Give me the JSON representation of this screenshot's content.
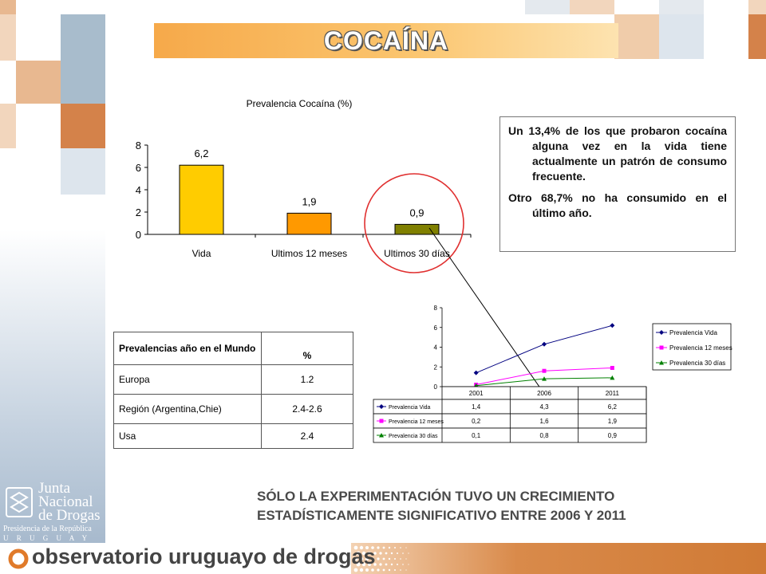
{
  "header": {
    "title": "COCAÍNA"
  },
  "bar_chart_title": "Prevalencia Cocaína (%)",
  "note": {
    "paragraph_1": "Un 13,4% de los que probaron cocaína alguna vez en la vida tiene actualmente un patrón de consumo frecuente.",
    "paragraph_2": "Otro 68,7% no ha consumido en el último año."
  },
  "world_table": {
    "header_label": "Prevalencias año en el Mundo",
    "header_value": "%",
    "rows": [
      {
        "label": "Europa",
        "value": "1.2"
      },
      {
        "label": "Región (Argentina,Chie)",
        "value": "2.4-2.6"
      },
      {
        "label": "Usa",
        "value": "2.4"
      }
    ]
  },
  "footer": {
    "message_line1": "SÓLO LA EXPERIMENTACIÓN TUVO UN CRECIMIENTO",
    "message_line2": "ESTADÍSTICAMENTE SIGNIFICATIVO ENTRE 2006 Y 2011",
    "observatorio": "observatorio uruguayo de drogas",
    "logo_line1": "Junta",
    "logo_line2": "Nacional",
    "logo_line3": "de Drogas",
    "logo_line4": "Presidencia de la República",
    "logo_line5": "U R U G U A Y"
  },
  "colors": {
    "vida": "#ffcc00",
    "doce": "#ff9900",
    "treinta": "#808000",
    "line_vida": "#000080",
    "line_doce": "#ff00ff",
    "line_treinta": "#008000"
  },
  "chart_data": [
    {
      "type": "bar",
      "title": "Prevalencia Cocaína (%)",
      "categories": [
        "Vida",
        "Ultimos 12 meses",
        "Ultimos 30 días"
      ],
      "values": [
        6.2,
        1.9,
        0.9
      ],
      "value_labels": [
        "6,2",
        "1,9",
        "0,9"
      ],
      "y_ticks": [
        "0",
        "2",
        "4",
        "6",
        "8"
      ],
      "ylim": [
        0,
        8
      ]
    },
    {
      "type": "line",
      "x": [
        "2001",
        "2006",
        "2011"
      ],
      "y_ticks": [
        "0",
        "2",
        "4",
        "6",
        "8"
      ],
      "ylim": [
        0,
        8
      ],
      "series": [
        {
          "name": "Prevalencia Vida",
          "values": [
            1.4,
            4.3,
            6.2
          ],
          "labels": [
            "1,4",
            "4,3",
            "6,2"
          ]
        },
        {
          "name": "Prevalencia 12 meses",
          "values": [
            0.2,
            1.6,
            1.9
          ],
          "labels": [
            "0,2",
            "1,6",
            "1,9"
          ]
        },
        {
          "name": "Prevalencia 30 días",
          "values": [
            0.1,
            0.8,
            0.9
          ],
          "labels": [
            "0,1",
            "0,8",
            "0,9"
          ]
        }
      ]
    }
  ]
}
